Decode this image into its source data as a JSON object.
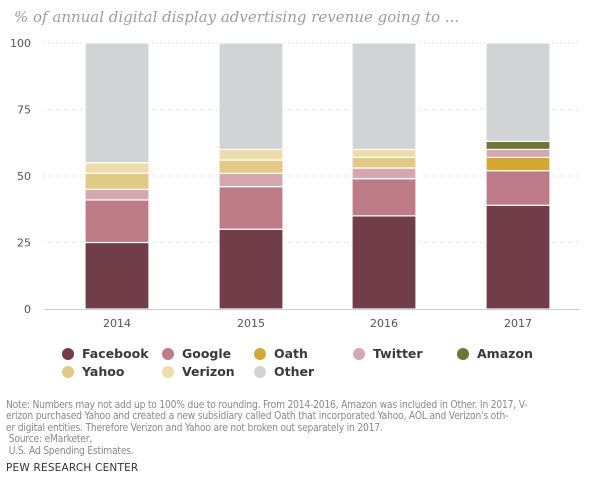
{
  "chart_data": {
    "type": "bar",
    "stacked": true,
    "title": "% of annual digital display advertising revenue going to ...",
    "xlabel": "",
    "ylabel": "",
    "ylim": [
      0,
      100
    ],
    "yticks": [
      0,
      25,
      50,
      75,
      100
    ],
    "grid": true,
    "categories": [
      "2014",
      "2015",
      "2016",
      "2017"
    ],
    "series": [
      {
        "name": "Facebook",
        "color": "#713d48",
        "values": [
          25,
          30,
          35,
          39
        ]
      },
      {
        "name": "Google",
        "color": "#bd7b87",
        "values": [
          16,
          16,
          14,
          13
        ]
      },
      {
        "name": "Oath",
        "color": "#d4a834",
        "values": [
          null,
          null,
          null,
          5
        ]
      },
      {
        "name": "Twitter",
        "color": "#d5a8b0",
        "values": [
          4,
          5,
          4,
          3
        ]
      },
      {
        "name": "Amazon",
        "color": "#6e7536",
        "values": [
          null,
          null,
          null,
          3
        ]
      },
      {
        "name": "Yahoo",
        "color": "#e2c986",
        "values": [
          6,
          5,
          4,
          null
        ]
      },
      {
        "name": "Verizon",
        "color": "#eedcaa",
        "values": [
          4,
          4,
          3,
          null
        ]
      },
      {
        "name": "Other",
        "color": "#d2d3d5",
        "values": [
          45,
          40,
          40,
          37
        ]
      }
    ],
    "legend_position": "bottom"
  },
  "legend": {
    "items": [
      {
        "label": "Facebook",
        "color": "#713d48"
      },
      {
        "label": "Google",
        "color": "#bd7b87"
      },
      {
        "label": "Oath",
        "color": "#d4a834"
      },
      {
        "label": "Twitter",
        "color": "#d5a8b0"
      },
      {
        "label": "Amazon",
        "color": "#6e7536"
      },
      {
        "label": "Yahoo",
        "color": "#e2c986"
      },
      {
        "label": "Verizon",
        "color": "#eedcaa"
      },
      {
        "label": "Other",
        "color": "#d2d3d5"
      }
    ]
  },
  "note": {
    "lines": [
      "Note: Numbers may not add up to 100% due to rounding. From 2014-2016, Amazon was included in Other. In 2017, V-",
      "erizon purchased Yahoo and created a new subsidiary called Oath that incorporated Yahoo, AOL and Verizon's oth-",
      "er digital entities. Therefore Verizon and Yahoo are not broken out separately in 2017.",
      " Source: eMarketer,",
      " U.S. Ad Spending Estimates."
    ]
  },
  "brand": "PEW RESEARCH CENTER"
}
